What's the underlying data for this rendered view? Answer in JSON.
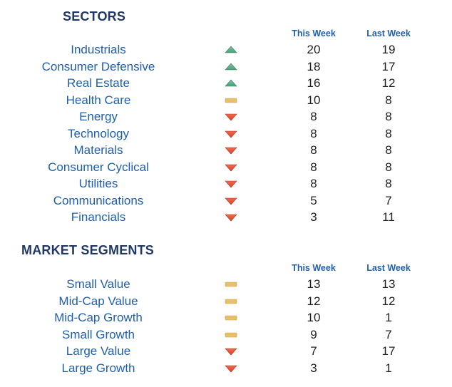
{
  "sectors": {
    "title": "SECTORS",
    "col_this": "This Week",
    "col_last": "Last Week",
    "rows": [
      {
        "name": "Industrials",
        "trend": "up",
        "this_week": "20",
        "last_week": "19"
      },
      {
        "name": "Consumer Defensive",
        "trend": "up",
        "this_week": "18",
        "last_week": "17"
      },
      {
        "name": "Real Estate",
        "trend": "up",
        "this_week": "16",
        "last_week": "12"
      },
      {
        "name": "Health Care",
        "trend": "flat",
        "this_week": "10",
        "last_week": "8"
      },
      {
        "name": "Energy",
        "trend": "down",
        "this_week": "8",
        "last_week": "8"
      },
      {
        "name": "Technology",
        "trend": "down",
        "this_week": "8",
        "last_week": "8"
      },
      {
        "name": "Materials",
        "trend": "down",
        "this_week": "8",
        "last_week": "8"
      },
      {
        "name": "Consumer Cyclical",
        "trend": "down",
        "this_week": "8",
        "last_week": "8"
      },
      {
        "name": "Utilities",
        "trend": "down",
        "this_week": "8",
        "last_week": "8"
      },
      {
        "name": "Communications",
        "trend": "down",
        "this_week": "5",
        "last_week": "7"
      },
      {
        "name": "Financials",
        "trend": "down",
        "this_week": "3",
        "last_week": "11"
      }
    ]
  },
  "segments": {
    "title": "MARKET SEGMENTS",
    "col_this": "This Week",
    "col_last": "Last Week",
    "rows": [
      {
        "name": "Small Value",
        "trend": "flat",
        "this_week": "13",
        "last_week": "13"
      },
      {
        "name": "Mid-Cap Value",
        "trend": "flat",
        "this_week": "12",
        "last_week": "12"
      },
      {
        "name": "Mid-Cap Growth",
        "trend": "flat",
        "this_week": "10",
        "last_week": "1"
      },
      {
        "name": "Small Growth",
        "trend": "flat",
        "this_week": "9",
        "last_week": "7"
      },
      {
        "name": "Large Value",
        "trend": "down",
        "this_week": "7",
        "last_week": "17"
      },
      {
        "name": "Large Growth",
        "trend": "down",
        "this_week": "3",
        "last_week": "1"
      }
    ]
  },
  "colors": {
    "up": "#4a9e7a",
    "flat": "#e8c06a",
    "down": "#d9432b",
    "label": "#1f5fad",
    "heading": "#1f3864"
  },
  "icons": {
    "up": "triangle-up-icon",
    "flat": "dash-icon",
    "down": "triangle-down-icon"
  }
}
